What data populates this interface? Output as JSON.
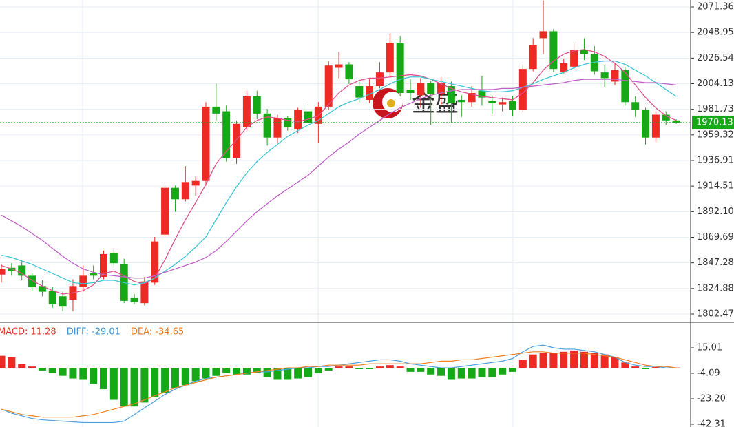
{
  "chart_data": [
    {
      "type": "candlestick",
      "open": [
        1837,
        1843,
        1845,
        1836,
        1827,
        1823,
        1818,
        1815,
        1826,
        1838,
        1835,
        1856,
        1846,
        1817,
        1812,
        1830,
        1872,
        1913,
        1903,
        1915,
        1919,
        1984,
        1980,
        1939,
        1966,
        1993,
        1978,
        1957,
        1974,
        1964,
        1980,
        1969,
        1984,
        2018,
        2021,
        2002,
        1990,
        2002,
        2014,
        2040,
        1999,
        1994,
        2005,
        1995,
        2002,
        1990,
        1988,
        1998,
        1989,
        1986,
        1989,
        1981,
        2017,
        2044,
        2050,
        2014,
        2019,
        2034,
        2030,
        2014,
        2006,
        2016,
        1988,
        1981,
        1957,
        1977,
        1972
      ],
      "high": [
        1846,
        1847,
        1849,
        1838,
        1832,
        1826,
        1822,
        1833,
        1845,
        1845,
        1858,
        1859,
        1851,
        1820,
        1835,
        1870,
        1915,
        1915,
        1932,
        1923,
        1988,
        2004,
        1985,
        1972,
        1998,
        1998,
        1982,
        1977,
        1976,
        1983,
        1986,
        1988,
        2024,
        2032,
        2023,
        2006,
        2008,
        2023,
        2048,
        2046,
        2008,
        2009,
        2007,
        2010,
        2006,
        1994,
        2002,
        2011,
        1994,
        1992,
        1993,
        2021,
        2044,
        2077,
        2052,
        2026,
        2040,
        2044,
        2037,
        2020,
        2022,
        2019,
        1993,
        1983,
        1980,
        1980,
        1973
      ],
      "low": [
        1830,
        1836,
        1832,
        1823,
        1818,
        1808,
        1805,
        1805,
        1822,
        1833,
        1833,
        1843,
        1812,
        1811,
        1810,
        1828,
        1870,
        1892,
        1901,
        1906,
        1915,
        1972,
        1936,
        1934,
        1963,
        1973,
        1950,
        1952,
        1963,
        1961,
        1966,
        1952,
        1981,
        2009,
        2004,
        1988,
        1987,
        2000,
        2010,
        1993,
        1990,
        1983,
        1968,
        1985,
        1970,
        1975,
        1984,
        1985,
        1978,
        1980,
        1976,
        1979,
        2015,
        2030,
        2014,
        2013,
        2016,
        2025,
        2012,
        2001,
        2003,
        1985,
        1975,
        1951,
        1953,
        1968,
        1969
      ],
      "close": [
        1842,
        1840,
        1836,
        1826,
        1822,
        1811,
        1809,
        1827,
        1836,
        1836,
        1855,
        1847,
        1814,
        1813,
        1831,
        1866,
        1913,
        1903,
        1918,
        1919,
        1984,
        1978,
        1939,
        1969,
        1993,
        1978,
        1957,
        1974,
        1966,
        1981,
        1970,
        1984,
        2020,
        2021,
        2008,
        1992,
        2002,
        2014,
        2040,
        1996,
        1996,
        2005,
        1995,
        2005,
        1987,
        1988,
        1996,
        1992,
        1987,
        1988,
        1981,
        2017,
        2038,
        2050,
        2017,
        2022,
        2034,
        2030,
        2015,
        2009,
        2016,
        1988,
        1981,
        1957,
        1977,
        1972,
        1970
      ],
      "up_color": "#ee2a24",
      "down_color": "#17a817",
      "series": [
        {
          "color": "#e0508c",
          "values": [
            1845,
            1842,
            1838,
            1832,
            1827,
            1823,
            1820,
            1821,
            1823,
            1828,
            1838,
            1840,
            1836,
            1831,
            1829,
            1834,
            1850,
            1868,
            1885,
            1900,
            1916,
            1934,
            1945,
            1955,
            1966,
            1972,
            1975,
            1974,
            1972,
            1971,
            1973,
            1976,
            1986,
            1996,
            2003,
            2007,
            2009,
            2009,
            2010,
            2011,
            2012,
            2011,
            2008,
            2004,
            2000,
            1997,
            1995,
            1993,
            1992,
            1991,
            1990,
            1996,
            2005,
            2016,
            2024,
            2030,
            2033,
            2034,
            2032,
            2028,
            2022,
            2014,
            2003,
            1992,
            1983,
            1976,
            1972
          ]
        },
        {
          "color": "#3ec6d6",
          "values": [
            1854,
            1852,
            1849,
            1846,
            1842,
            1838,
            1834,
            1830,
            1829,
            1830,
            1832,
            1832,
            1830,
            1828,
            1830,
            1834,
            1840,
            1846,
            1853,
            1861,
            1870,
            1885,
            1900,
            1914,
            1926,
            1936,
            1944,
            1951,
            1958,
            1963,
            1968,
            1972,
            1978,
            1984,
            1988,
            1991,
            1995,
            1999,
            2004,
            2008,
            2010,
            2010,
            2008,
            2006,
            2004,
            2002,
            2000,
            1998,
            1997,
            1997,
            1998,
            2001,
            2004,
            2008,
            2011,
            2014,
            2018,
            2021,
            2023,
            2024,
            2024,
            2021,
            2016,
            2011,
            2005,
            1999,
            1993
          ]
        },
        {
          "color": "#c060c8",
          "values": [
            1889,
            1884,
            1879,
            1873,
            1867,
            1860,
            1853,
            1847,
            1842,
            1839,
            1837,
            1836,
            1835,
            1834,
            1834,
            1836,
            1839,
            1842,
            1845,
            1848,
            1852,
            1858,
            1866,
            1875,
            1884,
            1892,
            1899,
            1906,
            1912,
            1918,
            1924,
            1932,
            1940,
            1947,
            1953,
            1960,
            1966,
            1972,
            1978,
            1983,
            1987,
            1991,
            1994,
            1996,
            1998,
            1999,
            1999,
            1999,
            1999,
            2000,
            2000,
            2001,
            2002,
            2003,
            2004,
            2005,
            2007,
            2008,
            2008,
            2008,
            2008,
            2007,
            2006,
            2005,
            2005,
            2004,
            2003
          ]
        }
      ],
      "ylim": [
        1795.84,
        2077.39
      ],
      "yticks": [
        2071.36,
        2048.95,
        2026.54,
        2004.13,
        1981.73,
        1959.32,
        1936.91,
        1914.51,
        {
          "value": 1892.1,
          "label": "1892.10"
        },
        1869.69,
        1847.28,
        1824.88,
        1802.47
      ],
      "last_price": 1970.13,
      "last_price_color": "#17a817",
      "grid": true
    },
    {
      "type": "macd",
      "legend": [
        {
          "text": "MACD: 11.28",
          "color": "#e03a20"
        },
        {
          "text": "DIFF: -29.01",
          "color": "#3c96dc"
        },
        {
          "text": "DEA: -34.65",
          "color": "#f07818"
        }
      ],
      "values": [
        9,
        8,
        3,
        1,
        -2,
        -4,
        -6,
        -8,
        -9,
        -12,
        -16,
        -24,
        -29,
        -29,
        -26,
        -22,
        -19,
        -15,
        -13,
        -10,
        -8,
        -6,
        -4,
        -5,
        -5,
        -4,
        -7,
        -9,
        -9,
        -8,
        -7,
        -4,
        -2,
        1,
        1,
        -1,
        -1,
        1,
        2,
        1,
        -3,
        -3,
        -5,
        -6,
        -9,
        -8,
        -8,
        -7,
        -7,
        -5,
        -3,
        6,
        10,
        11,
        11,
        12,
        13,
        12,
        11,
        10,
        8,
        4,
        1,
        -1,
        0.5,
        0.3,
        0.2
      ],
      "up_color": "#ee2a24",
      "down_color": "#17a817",
      "series": [
        {
          "color": "#4aa0e0",
          "values": [
            -31,
            -34,
            -36,
            -38,
            -39,
            -39.5,
            -40,
            -40.5,
            -41,
            -41,
            -41,
            -41,
            -40,
            -35,
            -30,
            -25,
            -20,
            -16,
            -13,
            -10,
            -8,
            -7,
            -6,
            -5,
            -4,
            -3,
            -3,
            -2,
            -1,
            0,
            0,
            1,
            1,
            2,
            3,
            4,
            5,
            6,
            6,
            5,
            3,
            2,
            1,
            0,
            0,
            1,
            2,
            3,
            4,
            5,
            7,
            12,
            16,
            17,
            15,
            14,
            14,
            13,
            12,
            10,
            8,
            4,
            2,
            1,
            1,
            0,
            0
          ]
        },
        {
          "color": "#f08020",
          "values": [
            -31,
            -33,
            -35,
            -36,
            -37,
            -37,
            -37,
            -37,
            -36,
            -35,
            -33,
            -31,
            -29,
            -27,
            -24,
            -21,
            -18,
            -15,
            -13,
            -11,
            -9,
            -7,
            -6,
            -5,
            -4,
            -3,
            -2,
            -1,
            0,
            0,
            1,
            1,
            2,
            2,
            2,
            2,
            3,
            3,
            3,
            3,
            3,
            3,
            4,
            5,
            5,
            6,
            6,
            7,
            8,
            9,
            10,
            11,
            12,
            12,
            11,
            11,
            11,
            11,
            10,
            9,
            8,
            6,
            4,
            2,
            1,
            1,
            0
          ]
        }
      ],
      "ylim": [
        -44.38,
        33.6
      ],
      "yticks": [
        15.01,
        -4.09,
        {
          "value": -23.2,
          "label": "-23.20"
        },
        -42.31
      ]
    }
  ],
  "watermark": "金盛"
}
